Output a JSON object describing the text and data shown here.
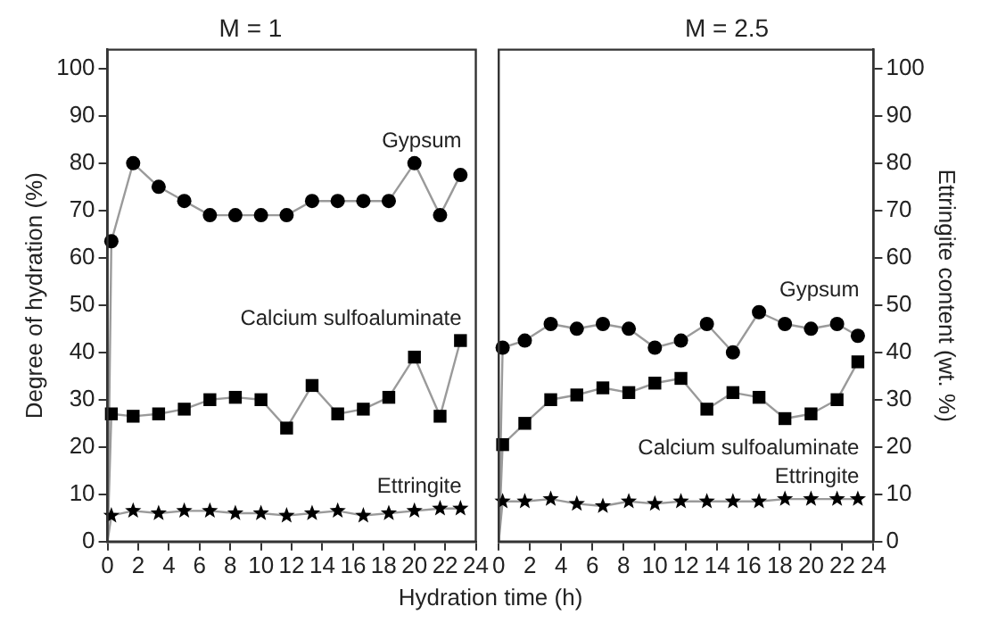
{
  "chart_data": [
    {
      "type": "line",
      "title": "M = 1",
      "ylabel": "Degree of hydration (%)",
      "xlabel": "Hydration time (h)",
      "x": [
        0,
        0.25,
        1.67,
        3.33,
        5,
        6.67,
        8.33,
        10,
        11.67,
        13.33,
        15,
        16.67,
        18.33,
        20,
        21.67,
        23
      ],
      "xlim": [
        0,
        24
      ],
      "xticks": [
        0,
        2,
        4,
        6,
        8,
        10,
        12,
        14,
        16,
        18,
        20,
        22,
        24
      ],
      "ylim": [
        0,
        104
      ],
      "yticks": [
        0,
        10,
        20,
        30,
        40,
        50,
        60,
        70,
        80,
        90,
        100
      ],
      "grid": false,
      "legend": false,
      "series": [
        {
          "name": "Gypsum",
          "color": "#000000",
          "marker": "circle",
          "values": [
            0,
            63.5,
            80,
            75,
            72,
            69,
            69,
            69,
            69,
            72,
            72,
            72,
            72,
            80,
            69,
            77.5
          ]
        },
        {
          "name": "Calcium sulfoaluminate",
          "color": "#000000",
          "marker": "square",
          "values": [
            0,
            27,
            26.5,
            27,
            28,
            30,
            30.5,
            30,
            24,
            33,
            27,
            28,
            30.5,
            39,
            26.5,
            42.5
          ]
        },
        {
          "name": "Ettringite",
          "color": "#000000",
          "marker": "star",
          "values": [
            0,
            5.5,
            6.5,
            6,
            6.5,
            6.5,
            6,
            6,
            5.5,
            6,
            6.5,
            5.5,
            6,
            6.5,
            7,
            7
          ]
        }
      ]
    },
    {
      "type": "line",
      "title": "M = 2.5",
      "y2label": "Ettringite content (wt. %)",
      "x": [
        0,
        0.25,
        1.67,
        3.33,
        5,
        6.67,
        8.33,
        10,
        11.67,
        13.33,
        15,
        16.67,
        18.33,
        20,
        21.67,
        23
      ],
      "xlim": [
        0,
        24
      ],
      "xticks": [
        0,
        2,
        4,
        6,
        8,
        10,
        12,
        14,
        16,
        18,
        20,
        22,
        24
      ],
      "y2lim": [
        0,
        104
      ],
      "y2ticks": [
        0,
        10,
        20,
        30,
        40,
        50,
        60,
        70,
        80,
        90,
        100
      ],
      "grid": false,
      "legend": false,
      "series": [
        {
          "name": "Gypsum",
          "color": "#000000",
          "marker": "circle",
          "axis": "y2",
          "values": [
            0,
            41,
            42.5,
            46,
            45,
            46,
            45,
            41,
            42.5,
            46,
            40,
            48.5,
            46,
            45,
            46,
            43.5
          ]
        },
        {
          "name": "Calcium sulfoaluminate",
          "color": "#000000",
          "marker": "square",
          "axis": "y2",
          "values": [
            0,
            20.5,
            25,
            30,
            31,
            32.5,
            31.5,
            33.5,
            34.5,
            28,
            31.5,
            30.5,
            26,
            27,
            30,
            38
          ]
        },
        {
          "name": "Ettringite",
          "color": "#000000",
          "marker": "star",
          "axis": "y2",
          "values": [
            0,
            8.5,
            8.5,
            9,
            8,
            7.5,
            8.5,
            8,
            8.5,
            8.5,
            8.5,
            8.5,
            9,
            9,
            9,
            9
          ]
        }
      ]
    }
  ]
}
